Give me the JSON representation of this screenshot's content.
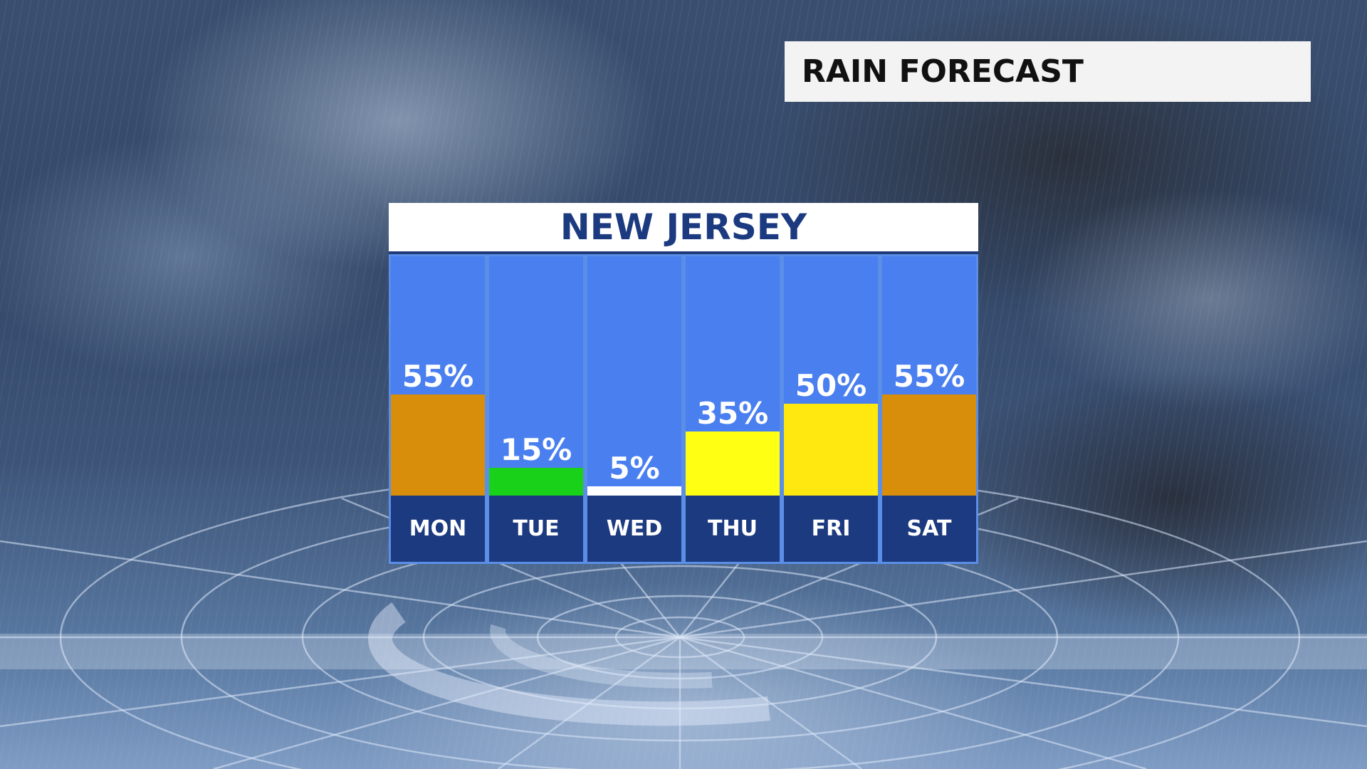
{
  "title_box": {
    "text": "RAIN FORECAST"
  },
  "region": {
    "name": "NEW JERSEY"
  },
  "chart_data": {
    "type": "bar",
    "title": "RAIN FORECAST",
    "subtitle": "NEW JERSEY",
    "categories": [
      "MON",
      "TUE",
      "WED",
      "THU",
      "FRI",
      "SAT"
    ],
    "values": [
      55,
      15,
      5,
      35,
      50,
      55
    ],
    "value_labels": [
      "55%",
      "15%",
      "5%",
      "35%",
      "50%",
      "55%"
    ],
    "bar_colors": [
      "#d98e0b",
      "#1ad11a",
      "#ffffff",
      "#ffff14",
      "#ffe80f",
      "#d98e0b"
    ],
    "ylim": [
      0,
      130
    ],
    "unit": "%",
    "grid": false,
    "legend": "none"
  },
  "colors": {
    "column_bg": "#4a7ff0",
    "day_cell_bg": "#1c3a80",
    "header_text": "#1c3a80"
  }
}
